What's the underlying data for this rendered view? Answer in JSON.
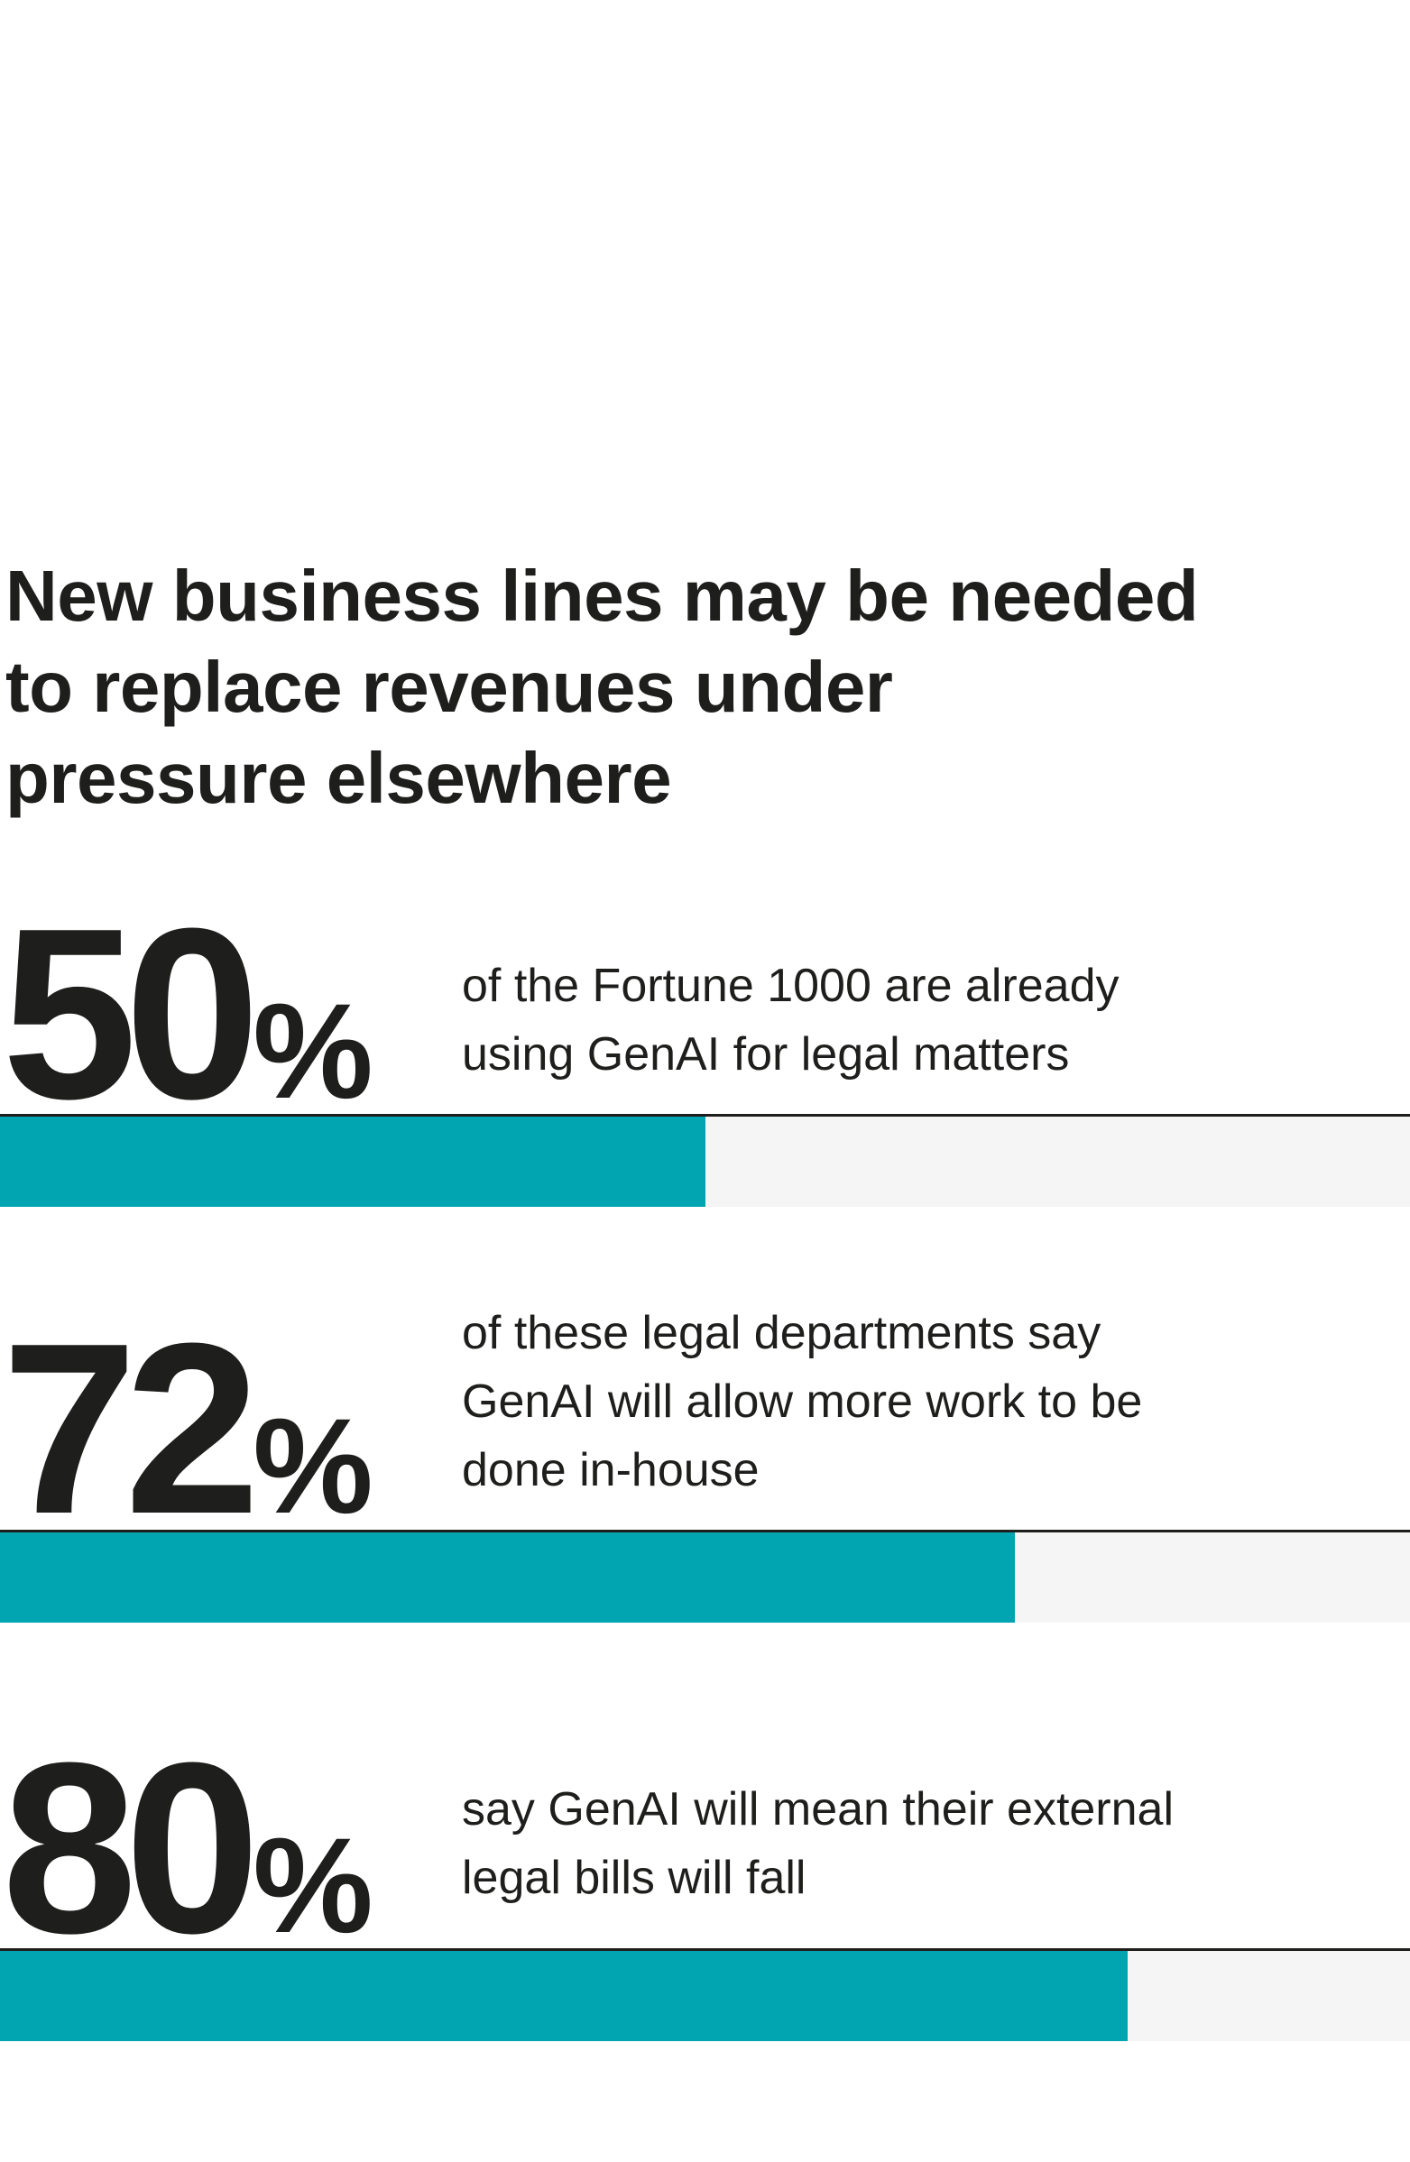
{
  "headline": {
    "lines": [
      "New business lines may be needed",
      "to replace revenues under",
      "pressure elsewhere"
    ]
  },
  "colors": {
    "bar_fill": "#00a5b1",
    "bar_track": "#f5f5f5",
    "text": "#1e1e1c",
    "rule": "#1e1e1c"
  },
  "chart_data": {
    "type": "bar",
    "orientation": "horizontal",
    "value_unit": "%",
    "xlim": [
      0,
      100
    ],
    "grid": false,
    "items": [
      {
        "value": 50,
        "number_label": "50",
        "percent_sign": "%",
        "description_lines": [
          "of the Fortune 1000 are already",
          "using GenAI for legal matters"
        ]
      },
      {
        "value": 72,
        "number_label": "72",
        "percent_sign": "%",
        "description_lines": [
          "of these legal departments say",
          "GenAI will allow more work to be",
          "done in-house"
        ]
      },
      {
        "value": 80,
        "number_label": "80",
        "percent_sign": "%",
        "description_lines": [
          "say GenAI will mean their external",
          "legal bills will fall"
        ]
      }
    ]
  }
}
